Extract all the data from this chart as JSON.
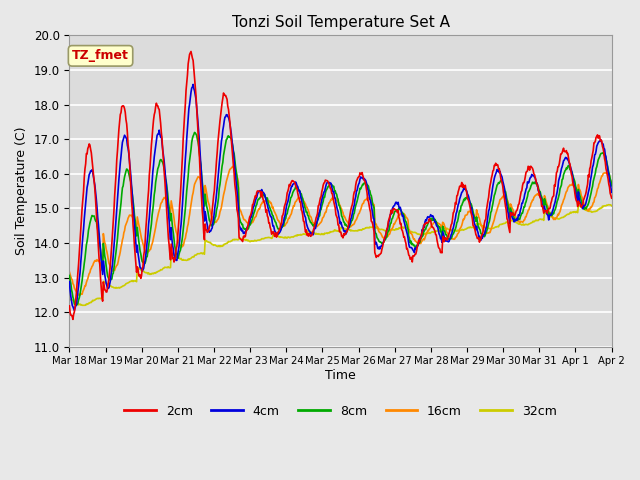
{
  "title": "Tonzi Soil Temperature Set A",
  "xlabel": "Time",
  "ylabel": "Soil Temperature (C)",
  "ylim": [
    11.0,
    20.0
  ],
  "yticks": [
    11.0,
    12.0,
    13.0,
    14.0,
    15.0,
    16.0,
    17.0,
    18.0,
    19.0,
    20.0
  ],
  "annotation_text": "TZ_fmet",
  "annotation_color": "#cc0000",
  "annotation_bg": "#ffffcc",
  "annotation_border": "#999966",
  "fig_bg": "#e8e8e8",
  "plot_bg": "#dcdcdc",
  "line_colors": {
    "2cm": "#ee0000",
    "4cm": "#0000dd",
    "8cm": "#00aa00",
    "16cm": "#ff8800",
    "32cm": "#cccc00"
  },
  "legend_labels": [
    "2cm",
    "4cm",
    "8cm",
    "16cm",
    "32cm"
  ],
  "xtick_labels": [
    "Mar 18",
    "Mar 19",
    "Mar 20",
    "Mar 21",
    "Mar 22",
    "Mar 23",
    "Mar 24",
    "Mar 25",
    "Mar 26",
    "Mar 27",
    "Mar 28",
    "Mar 29",
    "Mar 30",
    "Mar 31",
    "Apr 1",
    "Apr 2"
  ],
  "num_days": 16,
  "pts_per_day": 48
}
